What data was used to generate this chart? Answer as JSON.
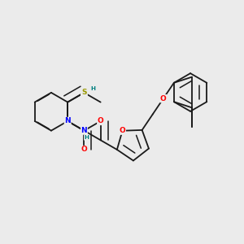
{
  "bg_color": "#ebebeb",
  "bond_color": "#1a1a1a",
  "atom_colors": {
    "N": "#0000ff",
    "O": "#ff0000",
    "S": "#999900",
    "H_N": "#008080",
    "C": "#1a1a1a"
  },
  "fig_width": 3.0,
  "fig_height": 3.0,
  "dpi": 100
}
